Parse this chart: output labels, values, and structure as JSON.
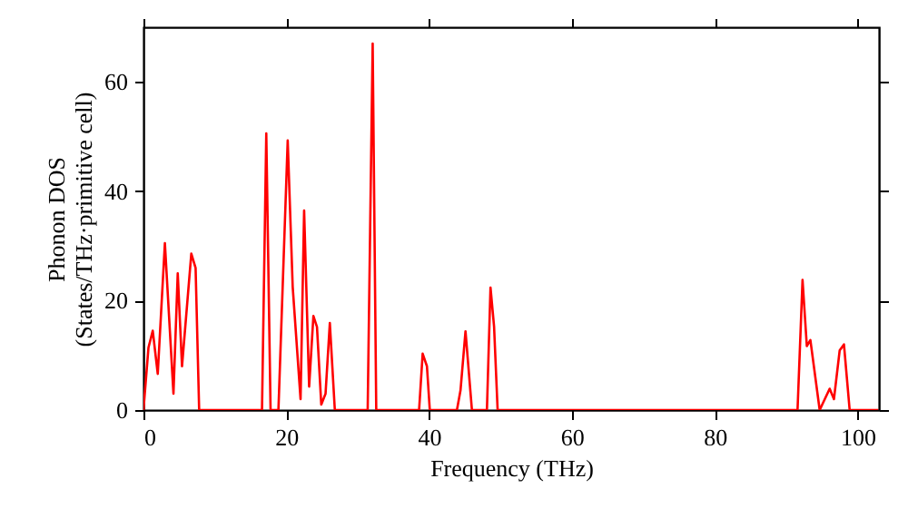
{
  "chart_data": {
    "type": "line",
    "xlabel": "Frequency (THz)",
    "ylabel": "Phonon DOS\n(States/THz·primitive cell)",
    "xlim": [
      0,
      103
    ],
    "ylim": [
      0,
      70
    ],
    "xticks": [
      0,
      20,
      40,
      60,
      80,
      100
    ],
    "yticks": [
      0,
      20,
      40,
      60
    ],
    "grid": false,
    "series": [
      {
        "color": "#ff0000",
        "x": [
          0,
          0.7,
          1.3,
          2.0,
          3.0,
          4.2,
          4.8,
          5.4,
          6.7,
          7.3,
          7.8,
          16.6,
          17.2,
          17.8,
          18.9,
          20.2,
          20.9,
          22.0,
          22.5,
          23.2,
          23.8,
          24.3,
          24.9,
          25.5,
          26.1,
          26.8,
          31.4,
          32.1,
          32.6,
          38.6,
          39.1,
          39.7,
          40.1,
          43.9,
          44.4,
          45.1,
          46.0,
          48.1,
          48.6,
          49.1,
          49.6,
          91.6,
          92.3,
          92.9,
          93.4,
          94.7,
          96.1,
          96.7,
          97.5,
          98.1,
          98.9,
          102.9
        ],
        "values": [
          0,
          11.4,
          14.5,
          6.6,
          30.5,
          3,
          25,
          8,
          28.6,
          26,
          0,
          0,
          50.6,
          0,
          0,
          49.3,
          22.5,
          2,
          36.5,
          4.3,
          17.2,
          15.2,
          1,
          3,
          15.9,
          0,
          0,
          67,
          0,
          0,
          10.3,
          8,
          0,
          0,
          3.6,
          14.4,
          0,
          0,
          22.4,
          15.3,
          0,
          0,
          23.8,
          11.7,
          12.8,
          0,
          3.9,
          2,
          10.9,
          12,
          0,
          0
        ]
      }
    ]
  }
}
